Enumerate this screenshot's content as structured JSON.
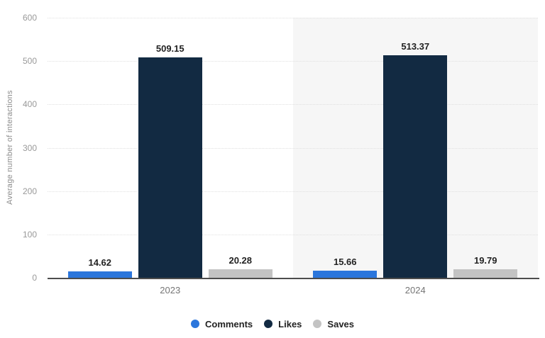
{
  "chart_data": {
    "type": "bar",
    "categories": [
      "2023",
      "2024"
    ],
    "series": [
      {
        "name": "Comments",
        "color": "#2b76dc",
        "values": [
          14.62,
          15.66
        ]
      },
      {
        "name": "Likes",
        "color": "#122a42",
        "values": [
          509.15,
          513.37
        ]
      },
      {
        "name": "Saves",
        "color": "#c3c3c3",
        "values": [
          20.28,
          19.79
        ]
      }
    ],
    "title": "",
    "xlabel": "",
    "ylabel": "Average number of interactions",
    "ylim": [
      0,
      600
    ],
    "ytick_step": 100,
    "ytick_labels": [
      "0",
      "100",
      "200",
      "300",
      "400",
      "500",
      "600"
    ],
    "grid": "horizontal-dotted",
    "legend_position": "bottom",
    "value_labels": [
      [
        "14.62",
        "509.15",
        "20.28"
      ],
      [
        "15.66",
        "513.37",
        "19.79"
      ]
    ],
    "band_colors": [
      "#ffffff",
      "#f6f6f6"
    ]
  },
  "colors": {
    "axis_line": "#4d4d4d",
    "gridline": "#e0e0e0",
    "tick_text": "#999999",
    "category_text": "#757575",
    "value_text": "#222222",
    "legend_text": "#222222",
    "background": "#ffffff"
  }
}
